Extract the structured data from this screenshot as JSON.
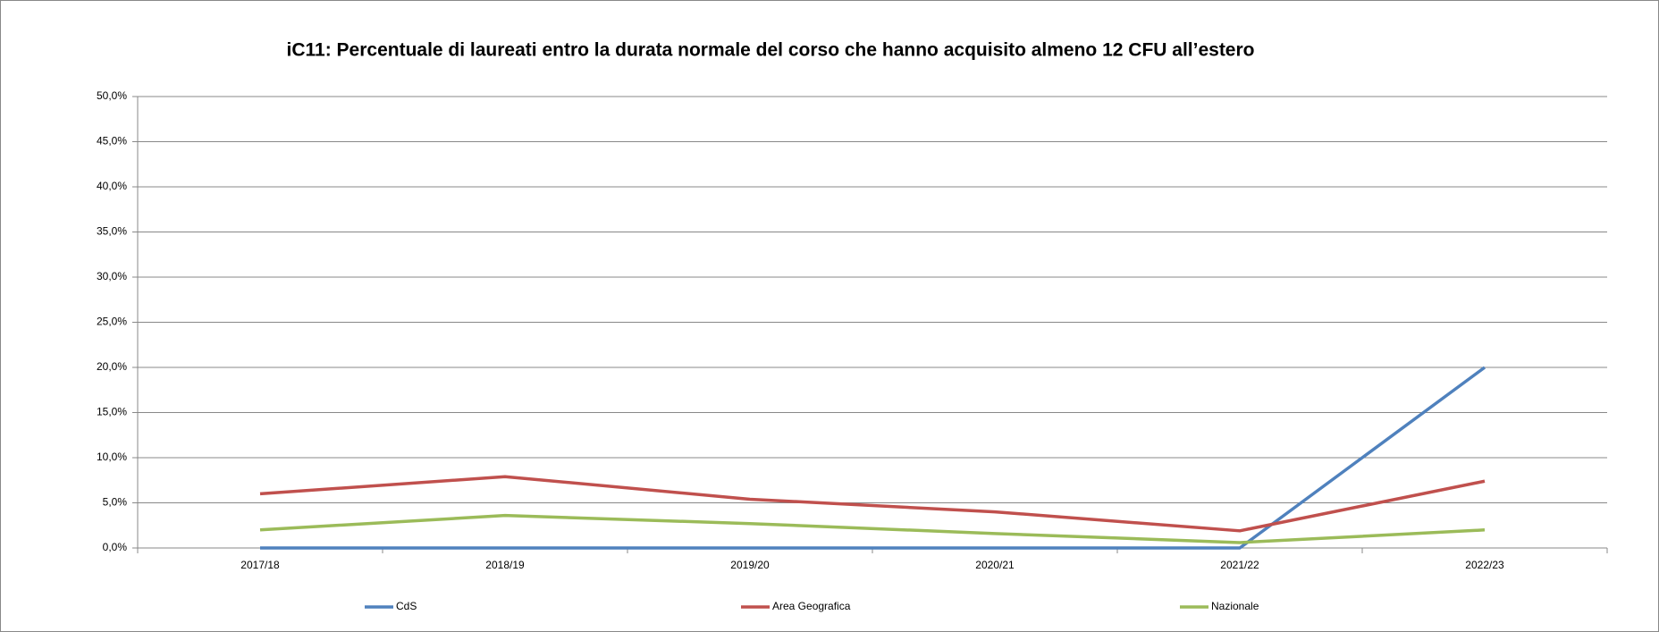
{
  "chart_data": {
    "type": "line",
    "title": "iC11: Percentuale di laureati entro la durata normale del corso che hanno acquisito almeno 12 CFU all’estero",
    "categories": [
      "2017/18",
      "2018/19",
      "2019/20",
      "2020/21",
      "2021/22",
      "2022/23"
    ],
    "series": [
      {
        "name": "CdS",
        "color": "#4f81bd",
        "values": [
          0,
          0,
          0,
          0,
          0,
          20
        ]
      },
      {
        "name": "Area Geografica",
        "color": "#c0504d",
        "values": [
          6.0,
          7.9,
          5.4,
          4.0,
          1.9,
          7.4
        ]
      },
      {
        "name": "Nazionale",
        "color": "#9bbb59",
        "values": [
          2.0,
          3.6,
          2.7,
          1.6,
          0.6,
          2.0
        ]
      }
    ],
    "ylim": [
      0,
      50
    ],
    "yticks": [
      {
        "value": 0,
        "label": "0,0%"
      },
      {
        "value": 5,
        "label": "5,0%"
      },
      {
        "value": 10,
        "label": "10,0%"
      },
      {
        "value": 15,
        "label": "15,0%"
      },
      {
        "value": 20,
        "label": "20,0%"
      },
      {
        "value": 25,
        "label": "25,0%"
      },
      {
        "value": 30,
        "label": "30,0%"
      },
      {
        "value": 35,
        "label": "35,0%"
      },
      {
        "value": 40,
        "label": "40,0%"
      },
      {
        "value": 45,
        "label": "45,0%"
      },
      {
        "value": 50,
        "label": "50,0%"
      }
    ],
    "grid": true,
    "legend": "bottom"
  }
}
